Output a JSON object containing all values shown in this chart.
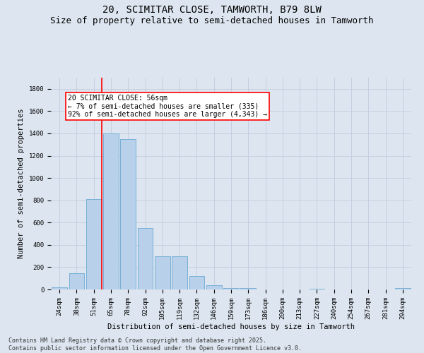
{
  "title_line1": "20, SCIMITAR CLOSE, TAMWORTH, B79 8LW",
  "title_line2": "Size of property relative to semi-detached houses in Tamworth",
  "xlabel": "Distribution of semi-detached houses by size in Tamworth",
  "ylabel": "Number of semi-detached properties",
  "categories": [
    "24sqm",
    "38sqm",
    "51sqm",
    "65sqm",
    "78sqm",
    "92sqm",
    "105sqm",
    "119sqm",
    "132sqm",
    "146sqm",
    "159sqm",
    "173sqm",
    "186sqm",
    "200sqm",
    "213sqm",
    "227sqm",
    "240sqm",
    "254sqm",
    "267sqm",
    "281sqm",
    "294sqm"
  ],
  "values": [
    20,
    145,
    810,
    1400,
    1350,
    550,
    295,
    295,
    120,
    40,
    15,
    15,
    0,
    0,
    0,
    5,
    0,
    0,
    0,
    0,
    10
  ],
  "bar_color": "#b8d0ea",
  "bar_edge_color": "#6aaad4",
  "grid_color": "#c5cfe0",
  "background_color": "#dde6f0",
  "vline_color": "red",
  "vline_pos": 2.5,
  "annotation_text": "20 SCIMITAR CLOSE: 56sqm\n← 7% of semi-detached houses are smaller (335)\n92% of semi-detached houses are larger (4,343) →",
  "ylim": [
    0,
    1900
  ],
  "yticks": [
    0,
    200,
    400,
    600,
    800,
    1000,
    1200,
    1400,
    1600,
    1800
  ],
  "footer_text": "Contains HM Land Registry data © Crown copyright and database right 2025.\nContains public sector information licensed under the Open Government Licence v3.0.",
  "title_fontsize": 10,
  "subtitle_fontsize": 9,
  "axis_label_fontsize": 7.5,
  "tick_fontsize": 6.5,
  "annotation_fontsize": 7,
  "footer_fontsize": 6
}
